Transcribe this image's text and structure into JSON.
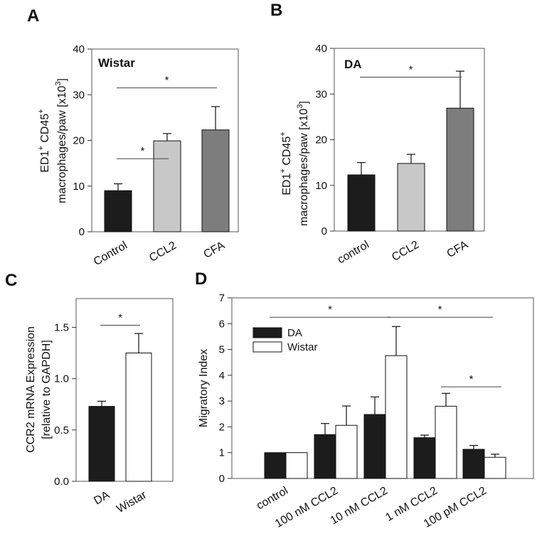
{
  "chart_data": [
    {
      "panel": "A",
      "type": "bar",
      "inset_label": "Wistar",
      "ylabel_line1": "ED1+ CD45+",
      "ylabel_line2": "macrophages/paw [x10",
      "ylabel_sup": "3",
      "ylabel_end": "]",
      "ylim": [
        0,
        40
      ],
      "yticks": [
        "0",
        "10",
        "20",
        "30",
        "40"
      ],
      "categories": [
        "Control",
        "CCL2",
        "CFA"
      ],
      "values": [
        9,
        19.9,
        22.3
      ],
      "errors": [
        1.5,
        1.6,
        5.1
      ],
      "colors": [
        "#1c1c1c",
        "#c8c8c8",
        "#7d7d7d"
      ],
      "significance": [
        {
          "from": 0,
          "to": 1,
          "level": 16,
          "label": "*"
        },
        {
          "from": 0,
          "to": 2,
          "level": 31.5,
          "label": "*"
        }
      ]
    },
    {
      "panel": "B",
      "type": "bar",
      "inset_label": "DA",
      "ylim": [
        0,
        40
      ],
      "yticks": [
        "0",
        "10",
        "20",
        "30",
        "40"
      ],
      "categories": [
        "control",
        "CCL2",
        "CFA"
      ],
      "values": [
        12.3,
        14.8,
        26.9
      ],
      "errors": [
        2.7,
        2.0,
        8.1
      ],
      "colors": [
        "#1c1c1c",
        "#c8c8c8",
        "#7d7d7d"
      ],
      "significance": [
        {
          "from": 0,
          "to": 2,
          "level": 33.7,
          "label": "*"
        }
      ]
    },
    {
      "panel": "C",
      "type": "bar",
      "ylabel_line1": "CCR2 mRNA Expression",
      "ylabel_line2": "[relative to GAPDH]",
      "ylim": [
        0,
        1.78
      ],
      "yticks": [
        "0.0",
        "0.5",
        "1.0",
        "1.5"
      ],
      "ytick_values": [
        0,
        0.5,
        1.0,
        1.5
      ],
      "categories": [
        "DA",
        "Wistar"
      ],
      "values": [
        0.73,
        1.25
      ],
      "errors": [
        0.05,
        0.19
      ],
      "colors": [
        "#1c1c1c",
        "#ffffff"
      ],
      "significance": [
        {
          "from": 0,
          "to": 1,
          "level": 1.52,
          "label": "*"
        }
      ]
    },
    {
      "panel": "D",
      "type": "bar",
      "ylabel": "Migratory Index",
      "ylim": [
        0,
        7
      ],
      "yticks": [
        "0",
        "1",
        "2",
        "3",
        "4",
        "5",
        "6",
        "7"
      ],
      "categories": [
        "control",
        "100 nM CCL2",
        "10 nM CCL2",
        "1 nM CCL2",
        "100 pM CCL2"
      ],
      "series": [
        {
          "name": "DA",
          "values": [
            1.0,
            1.7,
            2.48,
            1.58,
            1.13
          ],
          "errors": [
            0,
            0.43,
            0.68,
            0.1,
            0.15
          ],
          "color": "#1c1c1c"
        },
        {
          "name": "Wistar",
          "values": [
            1.0,
            2.06,
            4.76,
            2.8,
            0.82
          ],
          "errors": [
            0,
            0.75,
            1.13,
            0.5,
            0.12
          ],
          "color": "#ffffff"
        }
      ],
      "significance": [
        {
          "from_cat": 0,
          "to_cat": 2,
          "level": 6.25,
          "label": "*"
        },
        {
          "from_cat": 2,
          "to_cat": 4,
          "level": 6.25,
          "label": "*"
        },
        {
          "from_cat": 3,
          "to_cat": 4,
          "level": 3.55,
          "label": "*"
        }
      ]
    }
  ]
}
